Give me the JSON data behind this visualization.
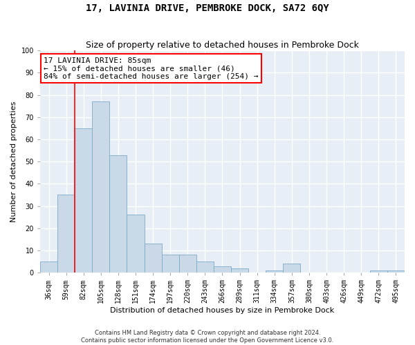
{
  "title": "17, LAVINIA DRIVE, PEMBROKE DOCK, SA72 6QY",
  "subtitle": "Size of property relative to detached houses in Pembroke Dock",
  "xlabel": "Distribution of detached houses by size in Pembroke Dock",
  "ylabel": "Number of detached properties",
  "footer_line1": "Contains HM Land Registry data © Crown copyright and database right 2024.",
  "footer_line2": "Contains public sector information licensed under the Open Government Licence v3.0.",
  "bar_labels": [
    "36sqm",
    "59sqm",
    "82sqm",
    "105sqm",
    "128sqm",
    "151sqm",
    "174sqm",
    "197sqm",
    "220sqm",
    "243sqm",
    "266sqm",
    "289sqm",
    "311sqm",
    "334sqm",
    "357sqm",
    "380sqm",
    "403sqm",
    "426sqm",
    "449sqm",
    "472sqm",
    "495sqm"
  ],
  "bar_values": [
    5,
    35,
    65,
    77,
    53,
    26,
    13,
    8,
    8,
    5,
    3,
    2,
    0,
    1,
    4,
    0,
    0,
    0,
    0,
    1,
    1
  ],
  "bar_color": "#c9d9e8",
  "bar_edge_color": "#7aaac8",
  "annotation_line1": "17 LAVINIA DRIVE: 85sqm",
  "annotation_line2": "← 15% of detached houses are smaller (46)",
  "annotation_line3": "84% of semi-detached houses are larger (254) →",
  "annotation_box_color": "white",
  "annotation_box_edge_color": "red",
  "vline_color": "red",
  "vline_x_index": 2,
  "ylim": [
    0,
    100
  ],
  "yticks": [
    0,
    10,
    20,
    30,
    40,
    50,
    60,
    70,
    80,
    90,
    100
  ],
  "background_color": "#e8eef5",
  "grid_color": "white",
  "title_fontsize": 10,
  "subtitle_fontsize": 9,
  "axis_label_fontsize": 8,
  "tick_fontsize": 7,
  "annotation_fontsize": 8
}
